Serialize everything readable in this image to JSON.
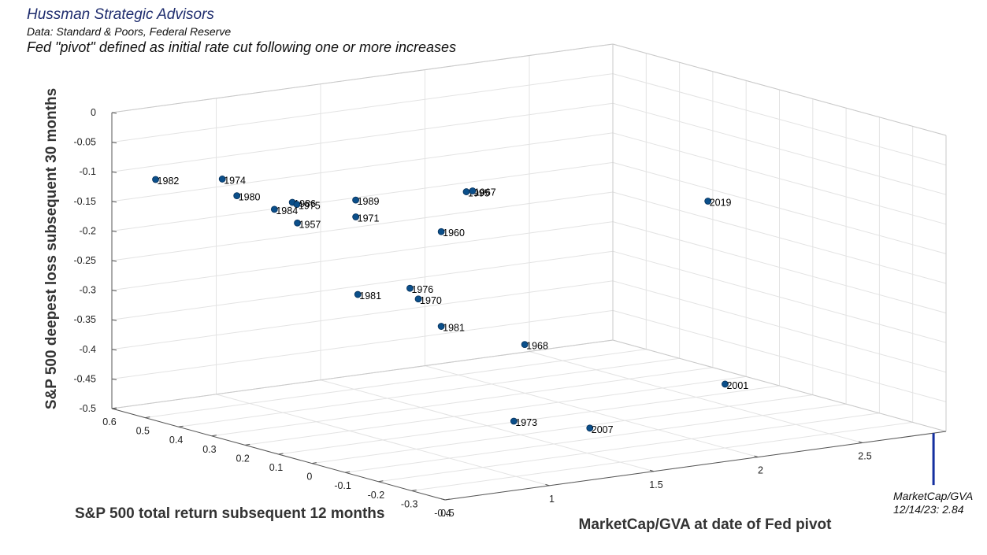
{
  "header": {
    "organization": "Hussman Strategic Advisors",
    "source": "Data: Standard & Poors, Federal Reserve",
    "definition": "Fed \"pivot\" defined as initial rate cut following one or more increases"
  },
  "chart_data": {
    "type": "scatter3d",
    "xlabel": "MarketCap/GVA at date of Fed pivot",
    "ylabel": "S&P 500 total return subsequent 12 months",
    "zlabel": "S&P 500 deepest loss subsequent 30 months",
    "xlim": [
      0.5,
      2.9
    ],
    "ylim": [
      -0.4,
      0.6
    ],
    "zlim": [
      -0.5,
      0
    ],
    "x_ticks": [
      0.5,
      1,
      1.5,
      2,
      2.5
    ],
    "x_tick_labels": [
      "0.5",
      "1",
      "1.5",
      "2",
      "2.5"
    ],
    "y_ticks": [
      -0.4,
      -0.3,
      -0.2,
      -0.1,
      0,
      0.1,
      0.2,
      0.3,
      0.4,
      0.5,
      0.6
    ],
    "y_tick_labels": [
      "-0.4",
      "-0.3",
      "-0.2",
      "-0.1",
      "0",
      "0.1",
      "0.2",
      "0.3",
      "0.4",
      "0.5",
      "0.6"
    ],
    "z_ticks": [
      0,
      -0.05,
      -0.1,
      -0.15,
      -0.2,
      -0.25,
      -0.3,
      -0.35,
      -0.4,
      -0.45,
      -0.5
    ],
    "z_tick_labels": [
      "0",
      "-0.05",
      "-0.1",
      "-0.15",
      "-0.2",
      "-0.25",
      "-0.3",
      "-0.35",
      "-0.4",
      "-0.45",
      "-0.5"
    ],
    "grid": true,
    "marker_color": "#0b4f8a",
    "reference_line": {
      "x": 2.84,
      "color": "#1530a0",
      "label": "MarketCap/GVA\n12/14/23: 2.84"
    },
    "points": [
      {
        "label": "1957",
        "x": 0.91,
        "y": 0.3,
        "z": -0.16
      },
      {
        "label": "1982",
        "x": 0.55,
        "y": 0.5,
        "z": -0.1
      },
      {
        "label": "1974",
        "x": 0.63,
        "y": 0.35,
        "z": -0.08
      },
      {
        "label": "1971",
        "x": 1.03,
        "y": 0.2,
        "z": -0.14
      },
      {
        "label": "1980",
        "x": 0.62,
        "y": 0.3,
        "z": -0.1
      },
      {
        "label": "1986",
        "x": 0.79,
        "y": 0.24,
        "z": -0.11
      },
      {
        "label": "1975",
        "x": 0.78,
        "y": 0.22,
        "z": -0.11
      },
      {
        "label": "1984",
        "x": 0.72,
        "y": 0.25,
        "z": -0.12
      },
      {
        "label": "1989",
        "x": 0.95,
        "y": 0.15,
        "z": -0.1
      },
      {
        "label": "1995",
        "x": 1.4,
        "y": 0.1,
        "z": -0.1
      },
      {
        "label": "1967",
        "x": 1.43,
        "y": 0.1,
        "z": -0.1
      },
      {
        "label": "1960",
        "x": 1.2,
        "y": 0.05,
        "z": -0.15
      },
      {
        "label": "2019",
        "x": 2.27,
        "y": -0.08,
        "z": -0.13
      },
      {
        "label": "1981",
        "x": 0.96,
        "y": 0.15,
        "z": -0.26
      },
      {
        "label": "1976",
        "x": 1.13,
        "y": 0.1,
        "z": -0.25
      },
      {
        "label": "1970",
        "x": 1.17,
        "y": 0.1,
        "z": -0.27
      },
      {
        "label": "1981",
        "x": 1.2,
        "y": 0.05,
        "z": -0.31
      },
      {
        "label": "1968",
        "x": 1.6,
        "y": 0.05,
        "z": -0.36
      },
      {
        "label": "2001",
        "x": 2.4,
        "y": -0.05,
        "z": -0.45
      },
      {
        "label": "1973",
        "x": 1.5,
        "y": 0.02,
        "z": -0.48
      },
      {
        "label": "2007",
        "x": 1.8,
        "y": -0.02,
        "z": -0.5
      }
    ]
  }
}
